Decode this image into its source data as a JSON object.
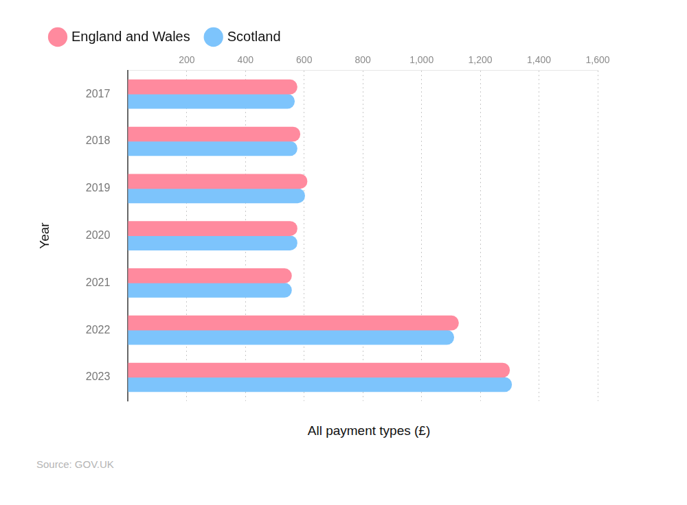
{
  "chart_data": {
    "type": "bar",
    "orientation": "horizontal",
    "x_label": "All payment types (£)",
    "y_label": "Year",
    "source": "Source: GOV.UK",
    "categories": [
      "2017",
      "2018",
      "2019",
      "2020",
      "2021",
      "2022",
      "2023"
    ],
    "series": [
      {
        "name": "England and Wales",
        "color": "#ff8a9e",
        "values": [
          576,
          586,
          610,
          576,
          557,
          1126,
          1300
        ]
      },
      {
        "name": "Scotland",
        "color": "#7dc4fc",
        "values": [
          567,
          576,
          602,
          576,
          557,
          1110,
          1307
        ]
      }
    ],
    "xlim": [
      0,
      1600
    ],
    "xticks": [
      200,
      400,
      600,
      800,
      {
        "value": 1000,
        "label": "1,000"
      },
      {
        "value": 1200,
        "label": "1,200"
      },
      {
        "value": 1400,
        "label": "1,400"
      },
      {
        "value": 1600,
        "label": "1,600"
      }
    ],
    "grid": true,
    "legend": "top-left"
  }
}
